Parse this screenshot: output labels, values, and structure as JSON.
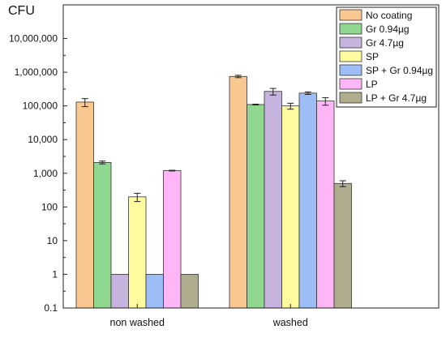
{
  "chart_data": {
    "type": "bar",
    "ylabel": "CFU",
    "yscale": "log",
    "ylim": [
      0.1,
      100000000
    ],
    "yticks": [
      "0.1",
      "1",
      "10",
      "100",
      "1,000",
      "10,000",
      "100,000",
      "1,000,000",
      "10,000,000"
    ],
    "ytick_values": [
      0.1,
      1,
      10,
      100,
      1000,
      10000,
      100000,
      1000000,
      10000000
    ],
    "categories": [
      "non washed",
      "washed"
    ],
    "legend_position": "top-right",
    "series": [
      {
        "name": "No coating",
        "color": "#F9C891",
        "values": [
          130000,
          750000
        ],
        "errors": [
          35000,
          60000
        ]
      },
      {
        "name": "Gr 0.94µg",
        "color": "#90D890",
        "values": [
          2100,
          110000
        ],
        "errors": [
          200,
          3000
        ]
      },
      {
        "name": "Gr 4.7µg",
        "color": "#C6B3DE",
        "values": [
          1,
          270000
        ],
        "errors": [
          0,
          60000
        ]
      },
      {
        "name": "SP",
        "color": "#FCFC9E",
        "values": [
          200,
          100000
        ],
        "errors": [
          55,
          20000
        ]
      },
      {
        "name": "SP + Gr 0.94µg",
        "color": "#9DBDF6",
        "values": [
          1,
          240000
        ],
        "errors": [
          0,
          20000
        ]
      },
      {
        "name": "LP",
        "color": "#FFB6F6",
        "values": [
          1200,
          140000
        ],
        "errors": [
          30,
          35000
        ]
      },
      {
        "name": "LP + Gr 4.7µg",
        "color": "#B0AD8E",
        "values": [
          1,
          500
        ],
        "errors": [
          0,
          100
        ]
      }
    ]
  }
}
